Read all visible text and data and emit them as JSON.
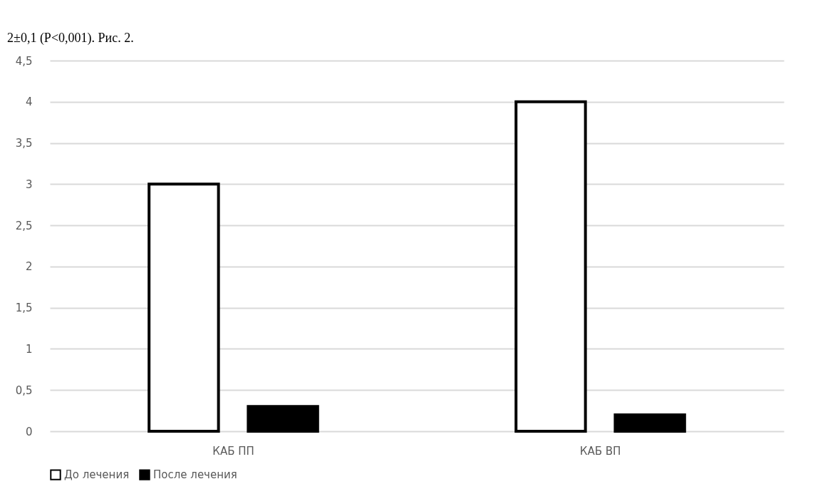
{
  "chart_data": {
    "type": "bar",
    "categories": [
      "КАБ ПП",
      "КАБ ВП"
    ],
    "series": [
      {
        "name": "До лечения",
        "color": "#ffffff",
        "values": [
          3,
          4
        ]
      },
      {
        "name": "После лечения",
        "color": "#000000",
        "values": [
          0.3,
          0.2
        ]
      }
    ],
    "ylim": [
      0,
      4.5
    ],
    "yticks": [
      0,
      {
        "value": 0.5,
        "label": "0,5"
      },
      1,
      {
        "value": 1.5,
        "label": "1,5"
      },
      2,
      {
        "value": 2.5,
        "label": "2,5"
      },
      3,
      {
        "value": 3.5,
        "label": "3,5"
      },
      4,
      {
        "value": 4.5,
        "label": "4,5"
      }
    ],
    "grid": "y",
    "legend": "bottom",
    "annotations": [
      "2±0,1 (P<0,001). Рис. 2."
    ]
  }
}
